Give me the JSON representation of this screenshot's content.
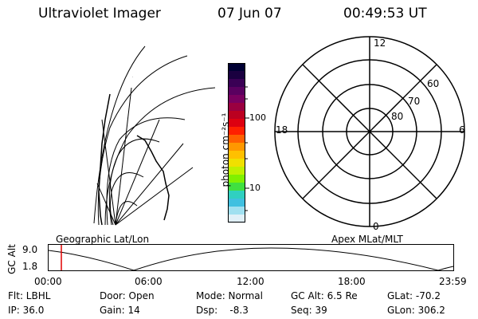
{
  "header": {
    "instrument": "Ultraviolet Imager",
    "date": "07 Jun 07",
    "time": "00:49:53 UT"
  },
  "colorbar": {
    "unit_label": "photon cm⁻²s⁻¹",
    "tick_100": "100",
    "tick_10": "10",
    "colors": [
      "#000033",
      "#1a0040",
      "#3a0055",
      "#5a0060",
      "#7a0060",
      "#9a0040",
      "#bb0020",
      "#dd0010",
      "#ff2000",
      "#ff6000",
      "#ff9800",
      "#ffc000",
      "#f0e000",
      "#c0f000",
      "#80f000",
      "#40e040",
      "#30d0c0",
      "#40c0e0",
      "#a0e0f0",
      "#e0f0f8"
    ]
  },
  "left_plot": {
    "caption": "Geographic Lat/Lon"
  },
  "polar_plot": {
    "caption": "Apex MLat/MLT",
    "label_12": "12",
    "label_18": "18",
    "label_6": "6",
    "label_0": "0",
    "lat_60": "60",
    "lat_70": "70",
    "lat_80": "80"
  },
  "timeline": {
    "axis_label": "GC Alt",
    "y_top": "9.0",
    "y_bottom": "1.8",
    "ticks": [
      "00:00",
      "06:00",
      "12:00",
      "18:00",
      "23:59"
    ],
    "marker_color": "#e00000"
  },
  "info": {
    "flt": "Flt: LBHL",
    "ip": "IP: 36.0",
    "door": "Door: Open",
    "gain": "Gain: 14",
    "mode": "Mode: Normal",
    "dsp": "Dsp:    -8.3",
    "gcalt": "GC Alt: 6.5 Re",
    "seq": "Seq: 39",
    "glat": "GLat: -70.2",
    "glon": "GLon: 306.2"
  }
}
